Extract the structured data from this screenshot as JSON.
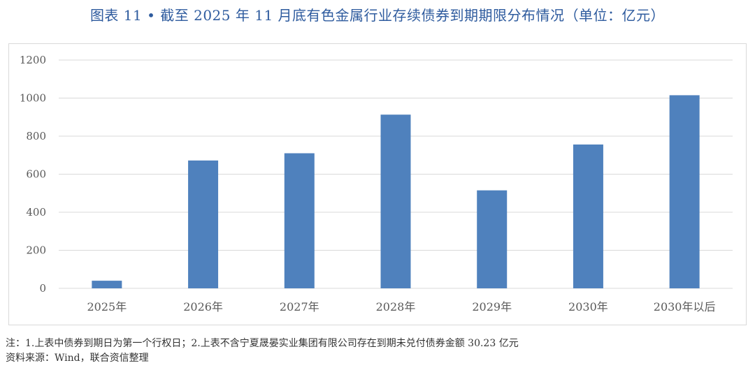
{
  "title": "图表 11 • 截至 2025 年 11 月底有色金属行业存续债券到期期限分布情况（单位：亿元）",
  "notes": [
    "注：1.上表中债券到期日为第一个行权日；2.上表不含宁夏晟晏实业集团有限公司存在到期未兑付债券金额 30.23 亿元",
    "资料来源：Wind，联合资信整理"
  ],
  "chart_data": {
    "type": "bar",
    "categories": [
      "2025年",
      "2026年",
      "2027年",
      "2028年",
      "2029年",
      "2030年",
      "2030年以后"
    ],
    "values": [
      40,
      672,
      710,
      913,
      515,
      756,
      1015
    ],
    "ylim": [
      0,
      1200
    ],
    "yticks": [
      0,
      200,
      400,
      600,
      800,
      1000,
      1200
    ],
    "grid": true,
    "bar_color": "#4F81BD"
  }
}
